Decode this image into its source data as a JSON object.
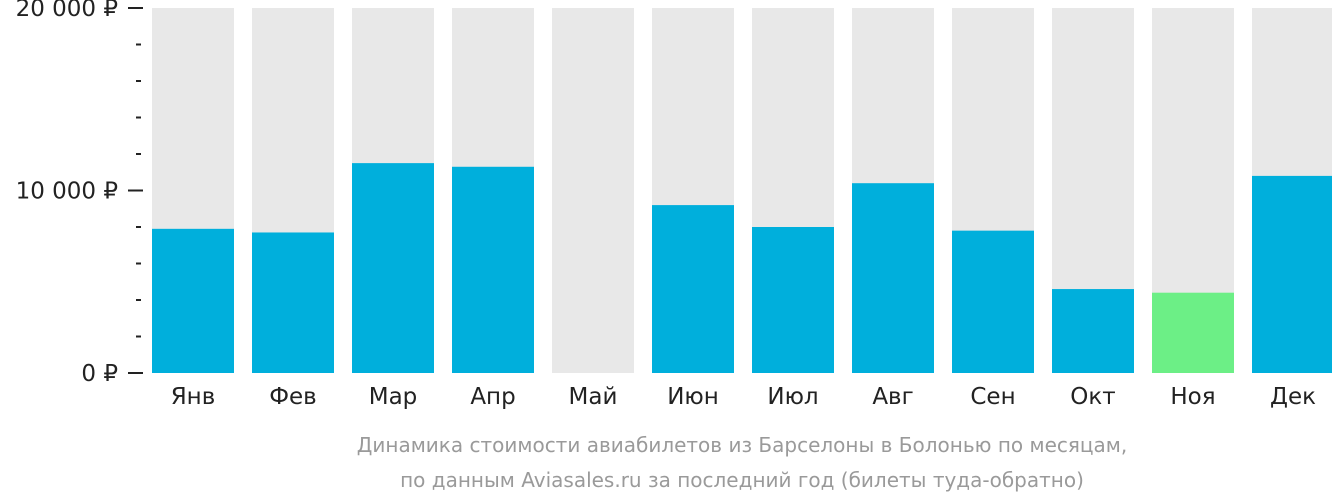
{
  "chart_data": {
    "type": "bar",
    "categories": [
      "Янв",
      "Фев",
      "Мар",
      "Апр",
      "Май",
      "Июн",
      "Июл",
      "Авг",
      "Сен",
      "Окт",
      "Ноя",
      "Дек"
    ],
    "values": [
      7900,
      7700,
      11500,
      11300,
      null,
      9200,
      8000,
      10400,
      7800,
      4600,
      4400,
      10800
    ],
    "highlight_category": "Ноя",
    "ylim": [
      0,
      20000
    ],
    "yticks": [
      {
        "value": 20000,
        "label": "20 000 ₽"
      },
      {
        "value": 10000,
        "label": "10 000 ₽"
      },
      {
        "value": 0,
        "label": "0 ₽"
      }
    ],
    "minor_tick_step": 2000,
    "title": "Динамика стоимости авиабилетов из Барселоны в Болонью по месяцам,",
    "subtitle": "по данным Aviasales.ru за последний год (билеты туда-обратно)",
    "grid": false,
    "colors": {
      "bar": "#00afdc",
      "highlight": "#6cef86",
      "background_bar": "#e8e8e8",
      "axis": "#222222",
      "caption": "#9a9a9a"
    }
  }
}
